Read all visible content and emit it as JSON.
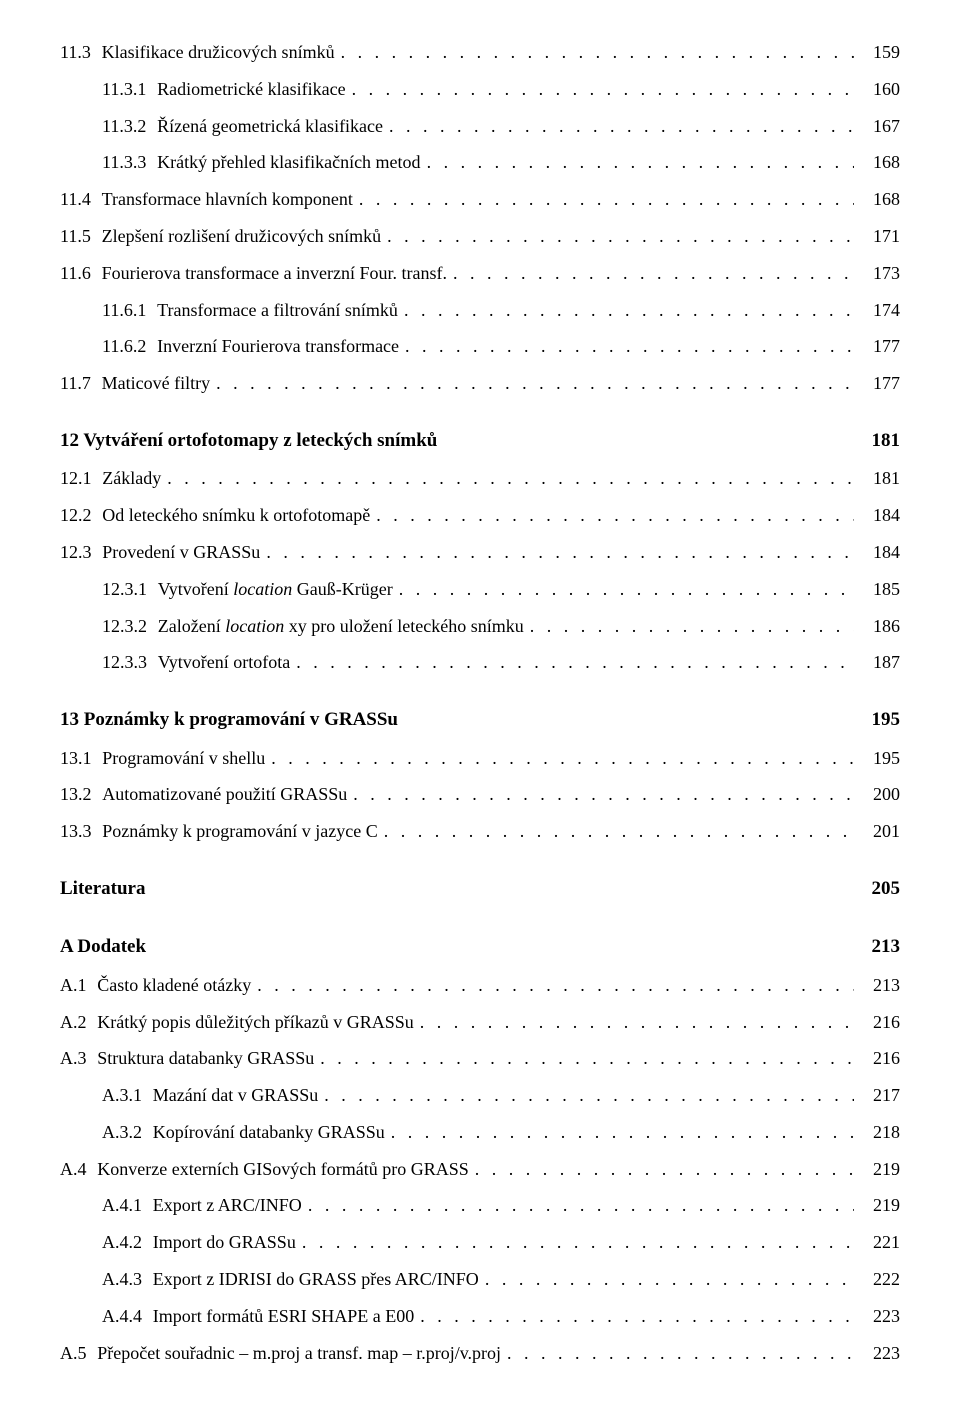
{
  "entries": [
    {
      "type": "item",
      "level": 1,
      "num": "11.3",
      "label": "Klasifikace družicových snímků",
      "page": "159"
    },
    {
      "type": "item",
      "level": 2,
      "num": "11.3.1",
      "label": "Radiometrické klasifikace",
      "page": "160"
    },
    {
      "type": "item",
      "level": 2,
      "num": "11.3.2",
      "label": "Řízená geometrická klasifikace",
      "page": "167"
    },
    {
      "type": "item",
      "level": 2,
      "num": "11.3.3",
      "label": "Krátký přehled klasifikačních metod",
      "page": "168"
    },
    {
      "type": "item",
      "level": 1,
      "num": "11.4",
      "label": "Transformace hlavních komponent",
      "page": "168"
    },
    {
      "type": "item",
      "level": 1,
      "num": "11.5",
      "label": "Zlepšení rozlišení družicových snímků",
      "page": "171"
    },
    {
      "type": "item",
      "level": 1,
      "num": "11.6",
      "label": "Fourierova transformace a inverzní Four. transf.",
      "page": "173"
    },
    {
      "type": "item",
      "level": 2,
      "num": "11.6.1",
      "label": "Transformace a filtrování snímků",
      "page": "174"
    },
    {
      "type": "item",
      "level": 2,
      "num": "11.6.2",
      "label": "Inverzní Fourierova transformace",
      "page": "177"
    },
    {
      "type": "item",
      "level": 1,
      "num": "11.7",
      "label": "Maticové filtry",
      "page": "177"
    },
    {
      "type": "chapter",
      "num": "12",
      "label": "Vytváření ortofotomapy z leteckých snímků",
      "page": "181"
    },
    {
      "type": "item",
      "level": 1,
      "num": "12.1",
      "label": "Základy",
      "page": "181"
    },
    {
      "type": "item",
      "level": 1,
      "num": "12.2",
      "label": "Od leteckého snímku k ortofotomapě",
      "page": "184"
    },
    {
      "type": "item",
      "level": 1,
      "num": "12.3",
      "label": "Provedení v GRASSu",
      "page": "184"
    },
    {
      "type": "item",
      "level": 2,
      "num": "12.3.1",
      "label_html": "Vytvoření <span class=\"italic\">location</span> Gauß-Krüger",
      "page": "185"
    },
    {
      "type": "item",
      "level": 2,
      "num": "12.3.2",
      "label_html": "Založení <span class=\"italic\">location</span> xy pro uložení leteckého snímku",
      "page": "186"
    },
    {
      "type": "item",
      "level": 2,
      "num": "12.3.3",
      "label": "Vytvoření ortofota",
      "page": "187"
    },
    {
      "type": "chapter",
      "num": "13",
      "label": "Poznámky k programování v GRASSu",
      "page": "195"
    },
    {
      "type": "item",
      "level": 1,
      "num": "13.1",
      "label": "Programování v shellu",
      "page": "195"
    },
    {
      "type": "item",
      "level": 1,
      "num": "13.2",
      "label": "Automatizované použití GRASSu",
      "page": "200"
    },
    {
      "type": "item",
      "level": 1,
      "num": "13.3",
      "label": "Poznámky k programování v jazyce C",
      "page": "201"
    },
    {
      "type": "chapter",
      "num": "",
      "label": "Literatura",
      "page": "205"
    },
    {
      "type": "chapter",
      "num": "A",
      "label": "Dodatek",
      "page": "213"
    },
    {
      "type": "item",
      "level": 1,
      "num": "A.1",
      "label": "Často kladené otázky",
      "page": "213"
    },
    {
      "type": "item",
      "level": 1,
      "num": "A.2",
      "label": "Krátký popis důležitých příkazů v GRASSu",
      "page": "216"
    },
    {
      "type": "item",
      "level": 1,
      "num": "A.3",
      "label": "Struktura databanky GRASSu",
      "page": "216"
    },
    {
      "type": "item",
      "level": 2,
      "num": "A.3.1",
      "label": "Mazání dat v GRASSu",
      "page": "217"
    },
    {
      "type": "item",
      "level": 2,
      "num": "A.3.2",
      "label": "Kopírování databanky GRASSu",
      "page": "218"
    },
    {
      "type": "item",
      "level": 1,
      "num": "A.4",
      "label": "Konverze externích GISových formátů pro GRASS",
      "page": "219"
    },
    {
      "type": "item",
      "level": 2,
      "num": "A.4.1",
      "label": "Export z ARC/INFO",
      "page": "219"
    },
    {
      "type": "item",
      "level": 2,
      "num": "A.4.2",
      "label": "Import do GRASSu",
      "page": "221"
    },
    {
      "type": "item",
      "level": 2,
      "num": "A.4.3",
      "label": "Export z IDRISI do GRASS přes ARC/INFO",
      "page": "222"
    },
    {
      "type": "item",
      "level": 2,
      "num": "A.4.4",
      "label": "Import formátů ESRI SHAPE a E00",
      "page": "223"
    },
    {
      "type": "item",
      "level": 1,
      "num": "A.5",
      "label": "Přepočet souřadnic – m.proj a transf. map – r.proj/v.proj",
      "page": "223"
    }
  ]
}
